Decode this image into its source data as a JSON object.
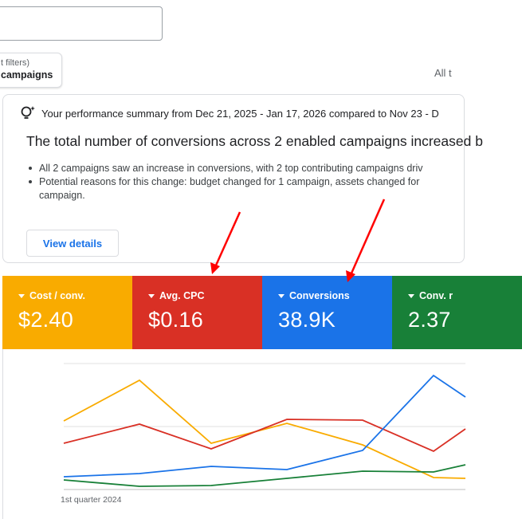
{
  "filters": {
    "sub": "t filters)",
    "main": "campaigns"
  },
  "all_text": "All t",
  "summary": {
    "header": "Your performance summary from Dec 21, 2025 - Jan 17, 2026 compared to Nov 23 - D",
    "title": "The total number of conversions across 2 enabled campaigns increased b",
    "bullet1": "All 2 campaigns saw an increase in conversions, with 2 top contributing campaigns driv",
    "bullet2": "Potential reasons for this change: budget changed for 1 campaign, assets changed for",
    "bullet2_cont": "campaign.",
    "view_details": "View details"
  },
  "metrics": [
    {
      "label": "Cost / conv.",
      "value": "$2.40",
      "color": "#f9ab00"
    },
    {
      "label": "Avg. CPC",
      "value": "$0.16",
      "color": "#d93025"
    },
    {
      "label": "Conversions",
      "value": "38.9K",
      "color": "#1a73e8"
    },
    {
      "label": "Conv. r",
      "value": "2.37",
      "color": "#188038"
    }
  ],
  "chart": {
    "x_label": "1st quarter 2024",
    "colors": {
      "yellow": "#f9ab00",
      "red": "#d93025",
      "blue": "#1a73e8",
      "green": "#188038"
    }
  },
  "annotation_color": "#ff0000"
}
